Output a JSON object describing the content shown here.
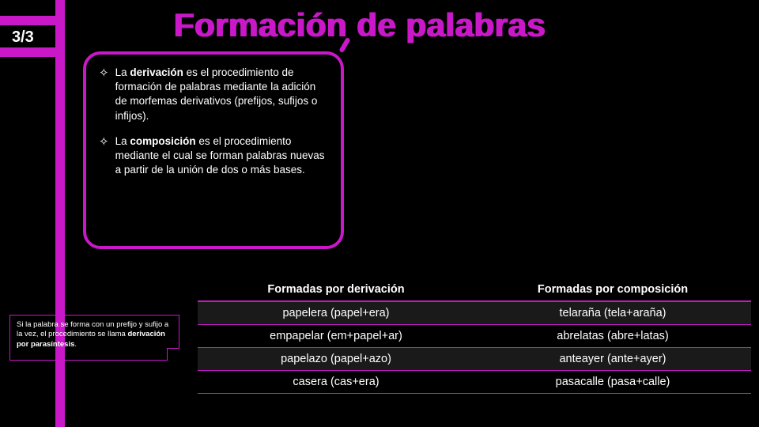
{
  "colors": {
    "accent": "#c818c8",
    "background": "#000000",
    "text": "#ffffff"
  },
  "pager": "3/3",
  "title": "Formación de palabras",
  "definitions": [
    {
      "pre": "La ",
      "bold": "derivación",
      "post": " es el procedimiento de formación de palabras mediante la adición de morfemas derivativos (prefijos, sufijos o infijos)."
    },
    {
      "pre": "La ",
      "bold": "composición",
      "post": " es el procedimiento mediante el cual se forman palabras nuevas a partir de la unión de dos o más bases."
    }
  ],
  "note": {
    "pre": "Si la palabra se forma con un prefijo y sufijo a la vez, el procedimiento se llama ",
    "bold": "derivación por parasíntesis",
    "post": "."
  },
  "table": {
    "headers": [
      "Formadas por derivación",
      "Formadas por composición"
    ],
    "rows": [
      [
        "papelera (papel+era)",
        "telaraña (tela+araña)"
      ],
      [
        "empapelar (em+papel+ar)",
        "abrelatas (abre+latas)"
      ],
      [
        "papelazo (papel+azo)",
        "anteayer (ante+ayer)"
      ],
      [
        "casera (cas+era)",
        "pasacalle (pasa+calle)"
      ]
    ]
  }
}
